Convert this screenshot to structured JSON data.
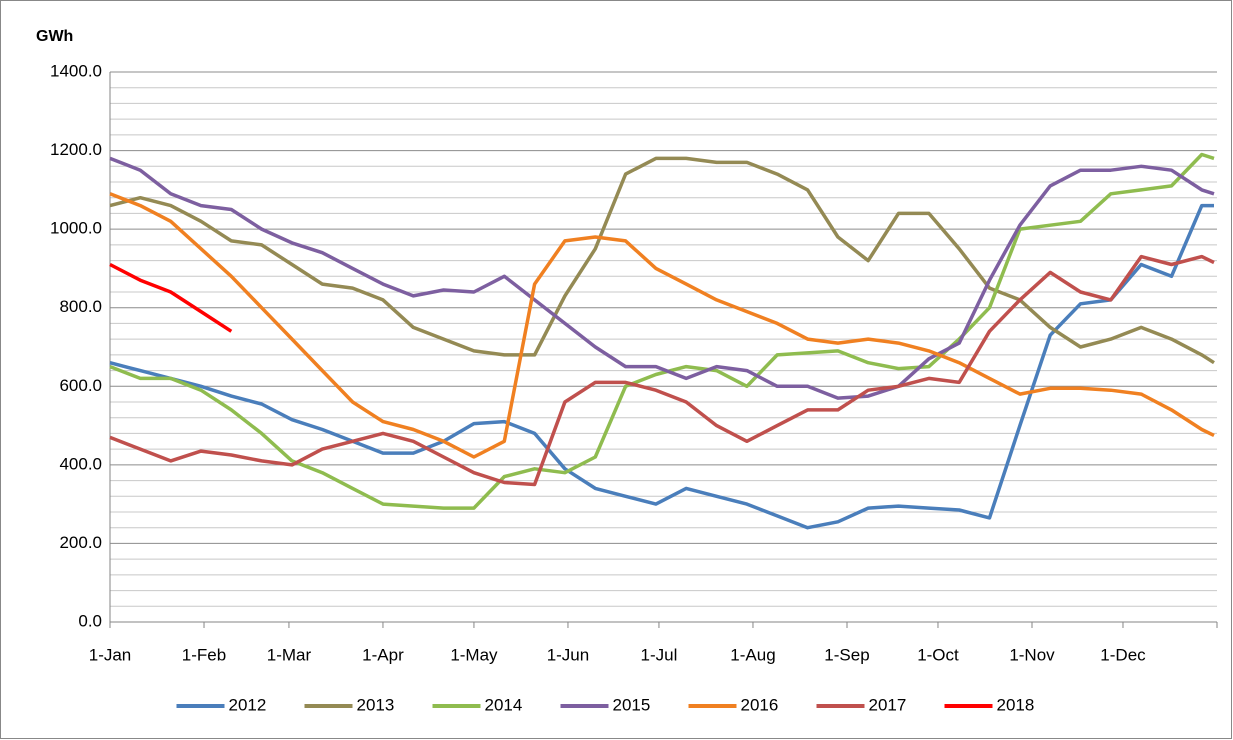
{
  "chart_data": {
    "type": "line",
    "y_label": "GWh",
    "x": [
      0,
      10,
      20,
      30,
      40,
      50,
      60,
      70,
      80,
      90,
      100,
      110,
      120,
      130,
      140,
      150,
      160,
      170,
      180,
      190,
      200,
      210,
      220,
      230,
      240,
      250,
      260,
      270,
      280,
      290,
      300,
      310,
      320,
      330,
      340,
      350,
      360,
      364
    ],
    "xlim": [
      0,
      365
    ],
    "xticks": [
      {
        "value": 0,
        "label": "1-Jan"
      },
      {
        "value": 31,
        "label": "1-Feb"
      },
      {
        "value": 59,
        "label": "1-Mar"
      },
      {
        "value": 90,
        "label": "1-Apr"
      },
      {
        "value": 120,
        "label": "1-May"
      },
      {
        "value": 151,
        "label": "1-Jun"
      },
      {
        "value": 181,
        "label": "1-Jul"
      },
      {
        "value": 212,
        "label": "1-Aug"
      },
      {
        "value": 243,
        "label": "1-Sep"
      },
      {
        "value": 273,
        "label": "1-Oct"
      },
      {
        "value": 304,
        "label": "1-Nov"
      },
      {
        "value": 334,
        "label": "1-Dec"
      }
    ],
    "ylim": [
      0,
      1400
    ],
    "yticks": [
      {
        "value": 0,
        "label": "0.0"
      },
      {
        "value": 200,
        "label": "200.0"
      },
      {
        "value": 400,
        "label": "400.0"
      },
      {
        "value": 600,
        "label": "600.0"
      },
      {
        "value": 800,
        "label": "800.0"
      },
      {
        "value": 1000,
        "label": "1000.0"
      },
      {
        "value": 1200,
        "label": "1200.0"
      },
      {
        "value": 1400,
        "label": "1400.0"
      }
    ],
    "grid": true,
    "legend": "bottom",
    "series": [
      {
        "name": "2012",
        "color": "#4a7ebb",
        "values": [
          660,
          640,
          620,
          600,
          575,
          555,
          515,
          490,
          460,
          430,
          430,
          460,
          505,
          510,
          480,
          390,
          340,
          320,
          300,
          340,
          320,
          300,
          270,
          240,
          255,
          290,
          295,
          290,
          285,
          265,
          500,
          730,
          810,
          820,
          910,
          880,
          1060,
          1060
        ]
      },
      {
        "name": "2013",
        "color": "#948a54",
        "values": [
          1060,
          1080,
          1060,
          1020,
          970,
          960,
          910,
          860,
          850,
          820,
          750,
          720,
          690,
          680,
          680,
          830,
          950,
          1140,
          1180,
          1180,
          1170,
          1170,
          1140,
          1100,
          980,
          920,
          1040,
          1040,
          950,
          850,
          820,
          750,
          700,
          720,
          750,
          720,
          680,
          660
        ]
      },
      {
        "name": "2014",
        "color": "#8fbc4f",
        "values": [
          650,
          620,
          620,
          590,
          540,
          480,
          410,
          380,
          340,
          300,
          295,
          290,
          290,
          370,
          390,
          380,
          420,
          600,
          630,
          650,
          640,
          600,
          680,
          685,
          690,
          660,
          645,
          650,
          720,
          800,
          1000,
          1010,
          1020,
          1090,
          1100,
          1110,
          1190,
          1180
        ]
      },
      {
        "name": "2015",
        "color": "#7d5fa0",
        "values": [
          1180,
          1150,
          1090,
          1060,
          1050,
          1000,
          965,
          940,
          900,
          860,
          830,
          845,
          840,
          880,
          820,
          760,
          700,
          650,
          650,
          620,
          650,
          640,
          600,
          600,
          570,
          575,
          600,
          670,
          710,
          870,
          1010,
          1110,
          1150,
          1150,
          1160,
          1150,
          1100,
          1090
        ]
      },
      {
        "name": "2016",
        "color": "#f08021",
        "values": [
          1090,
          1060,
          1020,
          950,
          880,
          800,
          720,
          640,
          560,
          510,
          490,
          460,
          420,
          460,
          860,
          970,
          980,
          970,
          900,
          860,
          820,
          790,
          760,
          720,
          710,
          720,
          710,
          690,
          660,
          620,
          580,
          595,
          595,
          590,
          580,
          540,
          490,
          475
        ]
      },
      {
        "name": "2017",
        "color": "#c0504d",
        "values": [
          470,
          440,
          410,
          435,
          425,
          410,
          400,
          440,
          460,
          480,
          460,
          420,
          380,
          355,
          350,
          560,
          610,
          610,
          590,
          560,
          500,
          460,
          500,
          540,
          540,
          590,
          600,
          620,
          610,
          740,
          820,
          890,
          840,
          820,
          930,
          910,
          930,
          915
        ]
      },
      {
        "name": "2018",
        "color": "#ff0000",
        "values": [
          910,
          870,
          840,
          790,
          740,
          null,
          null,
          null,
          null,
          null,
          null,
          null,
          null,
          null,
          null,
          null,
          null,
          null,
          null,
          null,
          null,
          null,
          null,
          null,
          null,
          null,
          null,
          null,
          null,
          null,
          null,
          null,
          null,
          null,
          null,
          null,
          null,
          null
        ]
      }
    ]
  }
}
